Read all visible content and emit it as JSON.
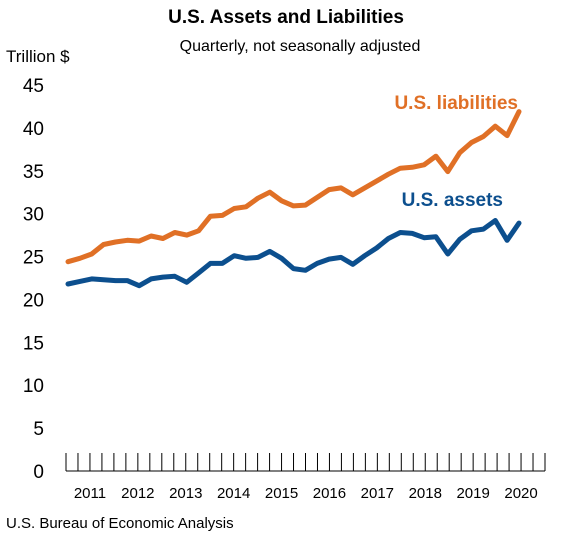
{
  "chart_data": {
    "type": "line",
    "title": "U.S. Assets and Liabilities",
    "subtitle": "Quarterly, not seasonally adjusted",
    "ylabel": "Trillion $",
    "ylim": [
      0,
      45
    ],
    "yticks": [
      0,
      5,
      10,
      15,
      20,
      25,
      30,
      35,
      40,
      45
    ],
    "x_start": "2011-Q1",
    "x_end": "2020-Q1",
    "xticks": [
      "2011",
      "2012",
      "2013",
      "2014",
      "2015",
      "2016",
      "2017",
      "2018",
      "2019",
      "2020"
    ],
    "grid": false,
    "source": "U.S. Bureau of Economic Analysis",
    "colors": {
      "liabilities": "#e07026",
      "assets": "#0c4f8e"
    },
    "series": [
      {
        "name": "U.S. liabilities",
        "values": [
          24.4,
          24.8,
          25.3,
          26.4,
          26.7,
          26.9,
          26.8,
          27.4,
          27.1,
          27.8,
          27.5,
          28.0,
          29.7,
          29.8,
          30.6,
          30.8,
          31.8,
          32.5,
          31.5,
          30.9,
          31.0,
          31.9,
          32.8,
          33.0,
          32.2,
          33.0,
          33.8,
          34.6,
          35.3,
          35.4,
          35.7,
          36.7,
          34.9,
          37.1,
          38.3,
          39.0,
          40.2,
          39.1,
          41.9
        ]
      },
      {
        "name": "U.S. assets",
        "values": [
          21.8,
          22.1,
          22.4,
          22.3,
          22.2,
          22.2,
          21.6,
          22.4,
          22.6,
          22.7,
          22.0,
          23.1,
          24.2,
          24.2,
          25.1,
          24.8,
          24.9,
          25.6,
          24.8,
          23.6,
          23.4,
          24.2,
          24.7,
          24.9,
          24.1,
          25.1,
          26.0,
          27.1,
          27.8,
          27.7,
          27.2,
          27.3,
          25.3,
          27.0,
          28.0,
          28.2,
          29.2,
          26.9,
          28.9
        ]
      }
    ]
  }
}
